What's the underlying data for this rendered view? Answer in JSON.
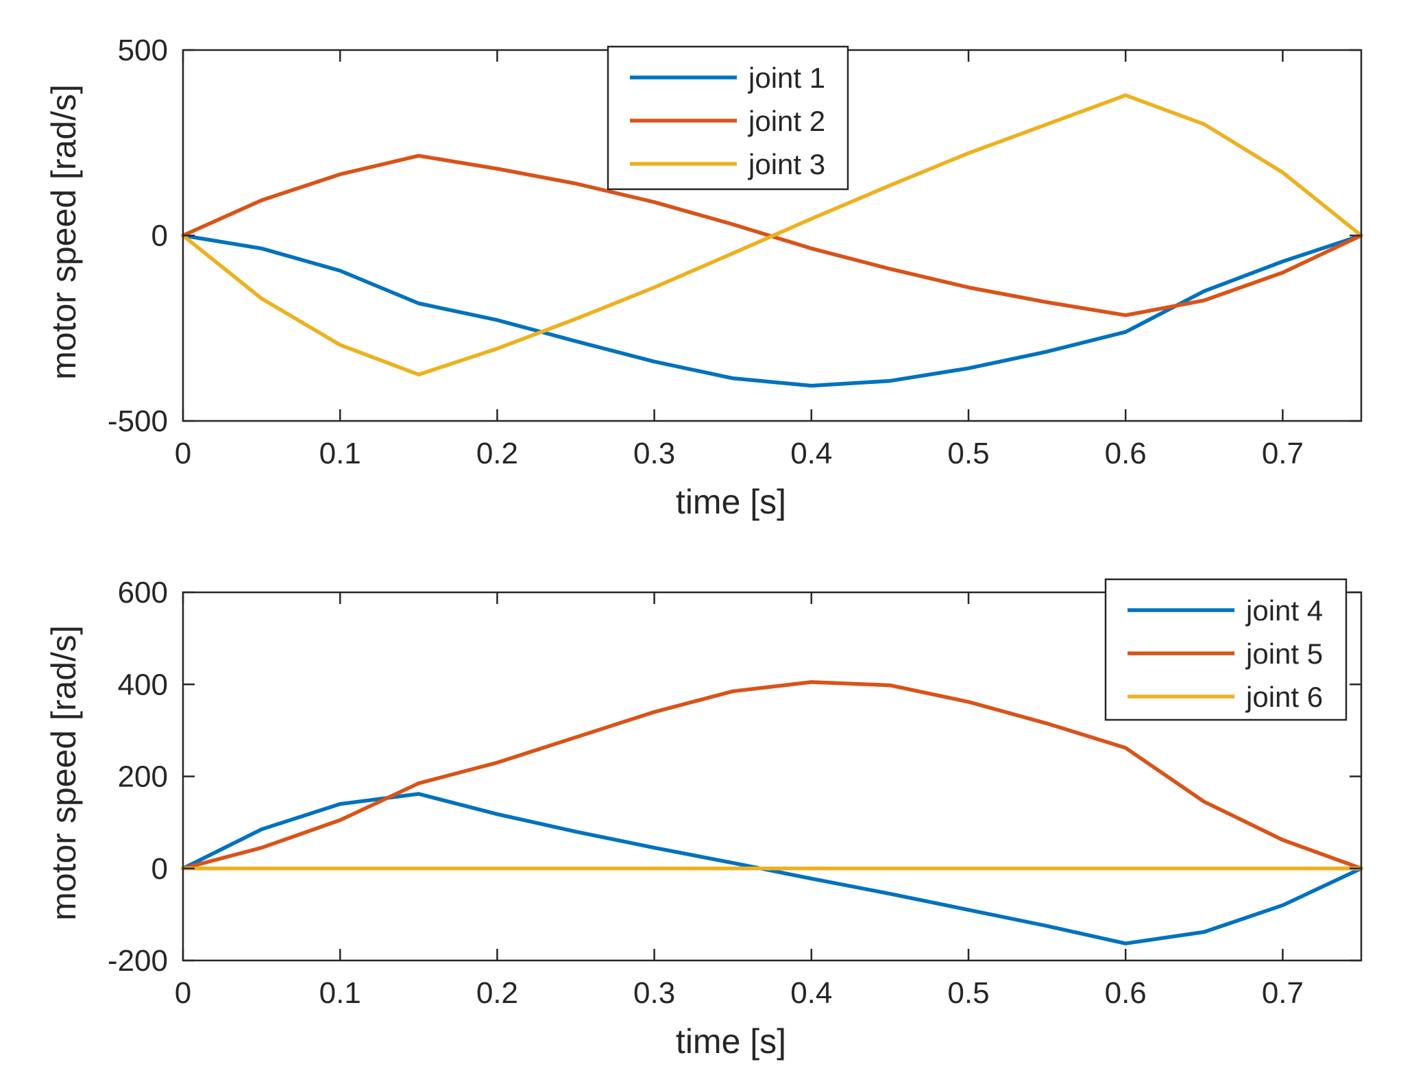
{
  "chart_data": [
    {
      "type": "line",
      "title": "",
      "xlabel": "time  [s]",
      "ylabel": "motor speed  [rad/s]",
      "xlim": [
        0,
        0.75
      ],
      "ylim": [
        -500,
        500
      ],
      "xticks": [
        0,
        0.1,
        0.2,
        0.3,
        0.4,
        0.5,
        0.6,
        0.7
      ],
      "xtick_labels": [
        "0",
        "0.1",
        "0.2",
        "0.3",
        "0.4",
        "0.5",
        "0.6",
        "0.7"
      ],
      "yticks": [
        -500,
        0,
        500
      ],
      "ytick_labels": [
        "-500",
        "0",
        "500"
      ],
      "legend_position": "top-center",
      "series": [
        {
          "name": "joint 1",
          "color": "#0072BD",
          "x": [
            0,
            0.05,
            0.1,
            0.15,
            0.2,
            0.25,
            0.3,
            0.35,
            0.4,
            0.45,
            0.5,
            0.55,
            0.6,
            0.65,
            0.7,
            0.75
          ],
          "y": [
            0,
            -35,
            -95,
            -183,
            -228,
            -285,
            -340,
            -385,
            -405,
            -392,
            -358,
            -313,
            -260,
            -150,
            -70,
            0
          ]
        },
        {
          "name": "joint 2",
          "color": "#D95319",
          "x": [
            0,
            0.05,
            0.1,
            0.15,
            0.2,
            0.25,
            0.3,
            0.35,
            0.4,
            0.45,
            0.5,
            0.55,
            0.6,
            0.65,
            0.7,
            0.75
          ],
          "y": [
            0,
            95,
            165,
            215,
            180,
            140,
            90,
            30,
            -35,
            -90,
            -140,
            -180,
            -215,
            -175,
            -100,
            0
          ]
        },
        {
          "name": "joint 3",
          "color": "#EDB120",
          "x": [
            0,
            0.05,
            0.1,
            0.15,
            0.2,
            0.25,
            0.3,
            0.35,
            0.4,
            0.45,
            0.5,
            0.55,
            0.6,
            0.65,
            0.7,
            0.75
          ],
          "y": [
            0,
            -170,
            -295,
            -375,
            -305,
            -225,
            -140,
            -48,
            45,
            135,
            222,
            300,
            378,
            300,
            170,
            0
          ]
        }
      ]
    },
    {
      "type": "line",
      "title": "",
      "xlabel": "time  [s]",
      "ylabel": "motor speed  [rad/s]",
      "xlim": [
        0,
        0.75
      ],
      "ylim": [
        -200,
        600
      ],
      "xticks": [
        0,
        0.1,
        0.2,
        0.3,
        0.4,
        0.5,
        0.6,
        0.7
      ],
      "xtick_labels": [
        "0",
        "0.1",
        "0.2",
        "0.3",
        "0.4",
        "0.5",
        "0.6",
        "0.7"
      ],
      "yticks": [
        -200,
        0,
        200,
        400,
        600
      ],
      "ytick_labels": [
        "-200",
        "0",
        "200",
        "400",
        "600"
      ],
      "legend_position": "top-right",
      "series": [
        {
          "name": "joint 4",
          "color": "#0072BD",
          "x": [
            0,
            0.05,
            0.1,
            0.15,
            0.2,
            0.25,
            0.3,
            0.35,
            0.4,
            0.45,
            0.5,
            0.55,
            0.6,
            0.65,
            0.7,
            0.75
          ],
          "y": [
            0,
            85,
            140,
            162,
            118,
            80,
            45,
            12,
            -22,
            -55,
            -90,
            -125,
            -163,
            -138,
            -80,
            0
          ]
        },
        {
          "name": "joint 5",
          "color": "#D95319",
          "x": [
            0,
            0.05,
            0.1,
            0.15,
            0.2,
            0.25,
            0.3,
            0.35,
            0.4,
            0.45,
            0.5,
            0.55,
            0.6,
            0.65,
            0.7,
            0.75
          ],
          "y": [
            0,
            45,
            105,
            185,
            230,
            285,
            340,
            385,
            405,
            398,
            362,
            315,
            262,
            145,
            62,
            0
          ]
        },
        {
          "name": "joint 6",
          "color": "#EDB120",
          "x": [
            0,
            0.75
          ],
          "y": [
            0,
            0
          ]
        }
      ]
    }
  ]
}
